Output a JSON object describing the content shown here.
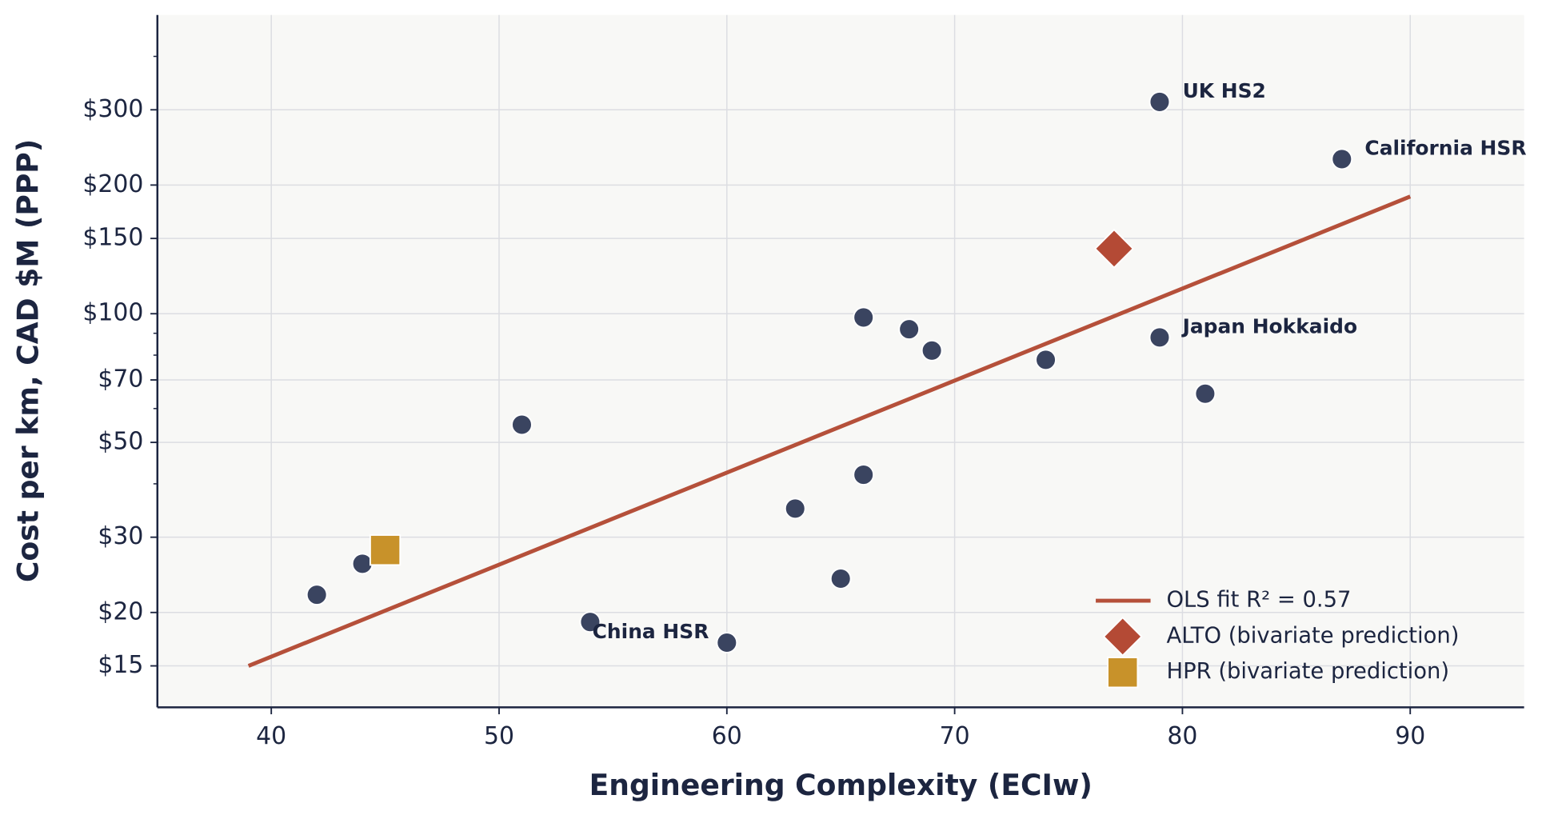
{
  "chart_data": {
    "type": "scatter",
    "x_label": "Engineering Complexity  (ECIw)",
    "y_label": "Cost per km,  CAD $M (PPP)",
    "xlim": [
      35,
      95
    ],
    "xticks": [
      40,
      50,
      60,
      70,
      80,
      90
    ],
    "ylim": [
      12,
      500
    ],
    "y_log": true,
    "yticks": [
      {
        "value": 15,
        "label": "$15"
      },
      {
        "value": 20,
        "label": "$20"
      },
      {
        "value": 30,
        "label": "$30"
      },
      {
        "value": 50,
        "label": "$50"
      },
      {
        "value": 70,
        "label": "$70"
      },
      {
        "value": 100,
        "label": "$100"
      },
      {
        "value": 150,
        "label": "$150"
      },
      {
        "value": 200,
        "label": "$200"
      },
      {
        "value": 300,
        "label": "$300"
      }
    ],
    "yminorticks": [
      40,
      60,
      80,
      90,
      400
    ],
    "grid": true,
    "legend": "lower right",
    "series": [
      {
        "marker": "circle",
        "color": "#3a4460",
        "x": [
          79,
          87,
          66,
          68,
          69,
          74,
          79,
          81,
          51,
          66,
          63,
          65,
          44,
          42,
          54,
          60
        ],
        "values": [
          313,
          230,
          98,
          92,
          82,
          78,
          88,
          65,
          55,
          42,
          35,
          24,
          26,
          22,
          19,
          17
        ],
        "point_labels": [
          "UK HS2",
          "California HSR",
          null,
          null,
          null,
          null,
          "Japan Hokkaido",
          null,
          null,
          null,
          null,
          null,
          null,
          null,
          null,
          "China HSR"
        ]
      },
      {
        "name": "OLS fit   R² = 0.57",
        "line": true,
        "color": "#b5503a",
        "x": [
          39,
          90
        ],
        "values": [
          15,
          188
        ]
      },
      {
        "name": "ALTO  (bivariate prediction)",
        "marker": "diamond",
        "color": "#b44a35",
        "x": [
          77
        ],
        "values": [
          142
        ]
      },
      {
        "name": "HPR   (bivariate prediction)",
        "marker": "square",
        "color": "#c8922a",
        "x": [
          45
        ],
        "values": [
          28
        ]
      }
    ]
  }
}
